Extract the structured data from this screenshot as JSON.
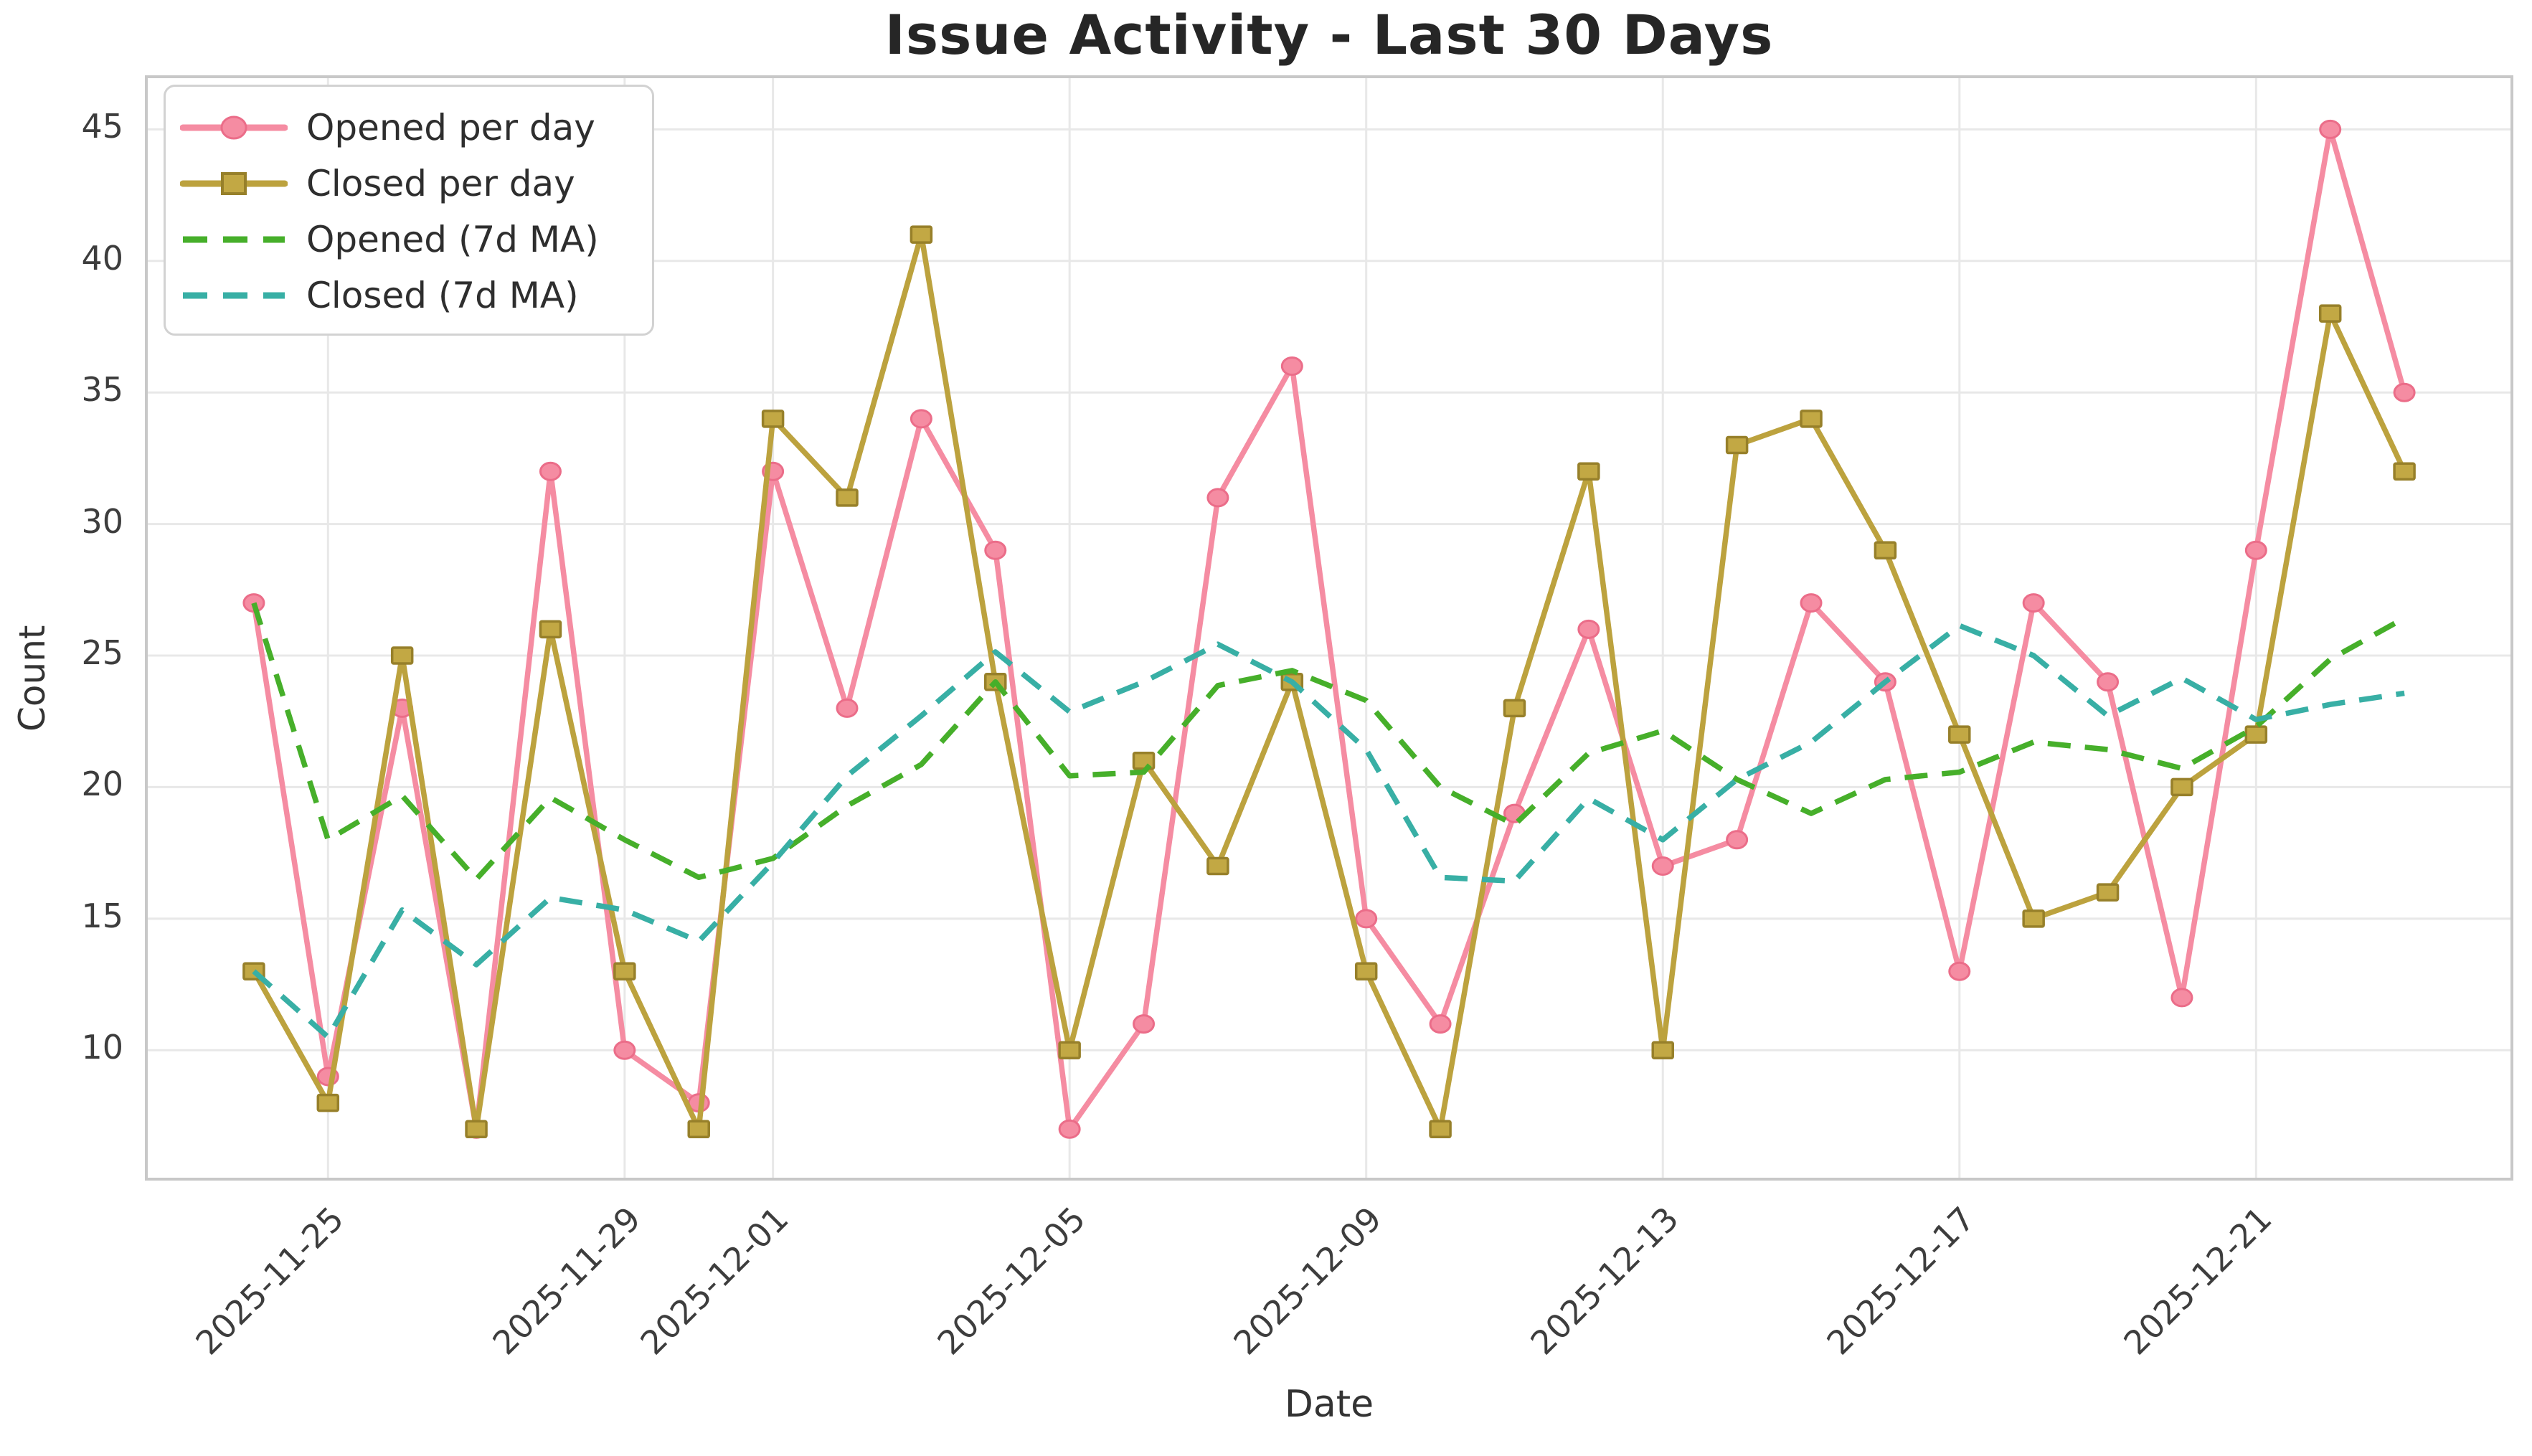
{
  "chart_data": {
    "type": "line",
    "title": "Issue Activity - Last 30 Days",
    "xlabel": "Date",
    "ylabel": "Count",
    "x": [
      "2025-11-24",
      "2025-11-25",
      "2025-11-26",
      "2025-11-27",
      "2025-11-28",
      "2025-11-29",
      "2025-11-30",
      "2025-12-01",
      "2025-12-02",
      "2025-12-03",
      "2025-12-04",
      "2025-12-05",
      "2025-12-06",
      "2025-12-07",
      "2025-12-08",
      "2025-12-09",
      "2025-12-10",
      "2025-12-11",
      "2025-12-12",
      "2025-12-13",
      "2025-12-14",
      "2025-12-15",
      "2025-12-16",
      "2025-12-17",
      "2025-12-18",
      "2025-12-19",
      "2025-12-20",
      "2025-12-21",
      "2025-12-22",
      "2025-12-23"
    ],
    "series": [
      {
        "name": "Opened per day",
        "style": "solid",
        "marker": "circle",
        "color": "#F58CA2",
        "marker_fill": "#F58CA2",
        "marker_edge": "#EB6D89",
        "values": [
          27,
          9,
          23,
          7,
          32,
          10,
          8,
          32,
          23,
          34,
          29,
          7,
          11,
          31,
          36,
          15,
          11,
          19,
          26,
          17,
          18,
          27,
          24,
          13,
          27,
          24,
          12,
          29,
          45,
          35
        ]
      },
      {
        "name": "Closed per day",
        "style": "solid",
        "marker": "square",
        "color": "#BCA23E",
        "marker_fill": "#C2A844",
        "marker_edge": "#97802A",
        "values": [
          13,
          8,
          25,
          7,
          26,
          13,
          7,
          34,
          31,
          41,
          24,
          10,
          21,
          17,
          24,
          13,
          7,
          23,
          32,
          10,
          33,
          34,
          29,
          22,
          15,
          16,
          20,
          22,
          38,
          32
        ]
      },
      {
        "name": "Opened (7d MA)",
        "style": "dashed",
        "marker": "none",
        "color": "#46AF2A",
        "values": [
          27,
          18,
          19.67,
          16.5,
          19.6,
          18,
          16.57,
          17.29,
          19.29,
          20.86,
          24,
          20.43,
          20.57,
          23.86,
          24.43,
          23.29,
          20,
          18.57,
          21.29,
          22.14,
          20.29,
          19,
          20.29,
          20.57,
          21.71,
          21.43,
          20.71,
          22.29,
          24.86,
          26.43
        ]
      },
      {
        "name": "Closed (7d MA)",
        "style": "dashed",
        "marker": "none",
        "color": "#38AFA5",
        "values": [
          13,
          10.5,
          15.33,
          13.25,
          15.8,
          15.33,
          14.14,
          17.14,
          20.43,
          22.71,
          25.14,
          22.86,
          24,
          25.43,
          24,
          21.43,
          16.57,
          16.43,
          19.57,
          18,
          20.29,
          21.71,
          24,
          26.14,
          25,
          22.71,
          24.14,
          22.57,
          23.14,
          23.57
        ]
      }
    ],
    "ma_window": 7,
    "x_tick_labels": [
      "2025-11-25",
      "2025-11-29",
      "2025-12-01",
      "2025-12-05",
      "2025-12-09",
      "2025-12-13",
      "2025-12-17",
      "2025-12-21"
    ],
    "y_ticks": [
      10,
      15,
      20,
      25,
      30,
      35,
      40,
      45
    ],
    "ylim": [
      5.1,
      47.0
    ],
    "grid": true,
    "legend_position": "upper left",
    "colors": {
      "background": "#ffffff",
      "grid": "#e8e8e8",
      "spine": "#c8c8c8",
      "title_text": "#262626",
      "tick_text": "#3d3d3d"
    }
  }
}
